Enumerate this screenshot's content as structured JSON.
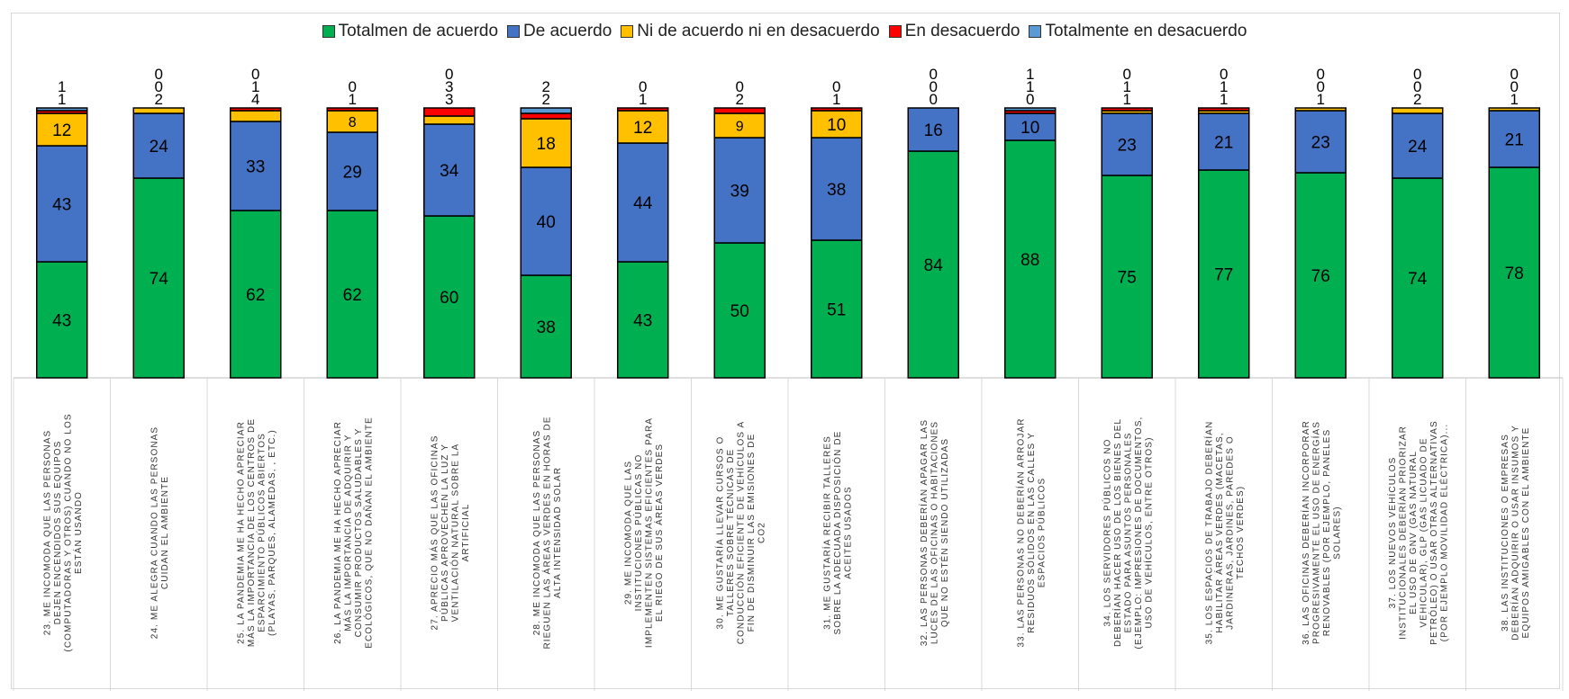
{
  "chart_data": {
    "type": "bar",
    "stacked": true,
    "legend_position": "top",
    "grid": false,
    "ylim": [
      0,
      100
    ],
    "series": [
      {
        "name": "Totalmen de acuerdo",
        "color": "#00b050",
        "values": [
          43,
          74,
          62,
          62,
          60,
          38,
          43,
          50,
          51,
          84,
          88,
          75,
          77,
          76,
          74,
          78
        ]
      },
      {
        "name": "De acuerdo",
        "color": "#4472c4",
        "values": [
          43,
          24,
          33,
          29,
          34,
          40,
          44,
          39,
          38,
          16,
          10,
          23,
          21,
          23,
          24,
          21
        ]
      },
      {
        "name": "Ni de acuerdo ni en desacuerdo",
        "color": "#ffc000",
        "values": [
          12,
          2,
          4,
          8,
          3,
          18,
          12,
          9,
          10,
          0,
          0,
          1,
          1,
          1,
          2,
          1
        ]
      },
      {
        "name": "En desacuerdo",
        "color": "#ff0000",
        "values": [
          1,
          0,
          1,
          1,
          3,
          2,
          1,
          2,
          1,
          0,
          1,
          1,
          1,
          0,
          0,
          0
        ]
      },
      {
        "name": "Totalmente en desacuerdo",
        "color": "#5b9bd5",
        "values": [
          1,
          0,
          0,
          0,
          0,
          2,
          0,
          0,
          0,
          0,
          1,
          0,
          0,
          0,
          0,
          0
        ]
      }
    ],
    "categories": [
      "23. ME INCOMODA QUE LAS PERSONAS DEJEN ENCENDIDOS SUS EQUIPOS (COMPUTADORAS Y OTROS) CUANDO NO LOS ESTÁN USANDO",
      "24. ME ALEGRA CUANDO LAS PERSONAS CUIDAN EL AMBIENTE",
      "25. LA PANDEMIA ME HA HECHO APRECIAR MÁS LA IMPORTANCIA DE LOS CENTROS DE ESPARCIMIENTO PÚBLICOS ABIERTOS (PLAYAS, PARQUES, ALAMEDAS, , ETC.)",
      "26. LA PANDEMIA ME HA HECHO APRECIAR MÁS LA IMPORTANCIA DE ADQUIRIR Y CONSUMIR PRODUCTOS SALUDABLES Y ECOLÓGICOS, QUE NO DAÑAN EL AMBIENTE",
      "27. APRECIO MÁS QUE LAS OFICINAS PÚBLICAS APROVECHEN LA LUZ Y VENTILACIÓN NATURAL SOBRE LA ARTIFICIAL",
      "28. ME INCOMODA QUE LAS PERSONAS RIEGUEN LAS ÁREAS VERDES EN HORAS DE ALTA INTENSIDAD SOLAR",
      "29. ME INCOMODA QUE LAS INSTITUCIONES PÚBLICAS NO IMPLEMENTEN SISTEMAS EFICIENTES PARA EL RIEGO DE SUS ÁREAS VERDES",
      "30. ME GUSTARÍA LLEVAR CURSOS O TALLERES SOBRE TÉCNICAS DE CONDUCCIÓN EFICIENTE DE VEHÍCULOS A FIN DE DISMINUIR LAS EMISIONES DE CO2",
      "31. ME GUSTARÍA RECIBIR TALLERES SOBRE LA ADECUADA DISPOSICIÓN DE ACEITES USADOS",
      "32. LAS PERSONAS DEBERÍAN APAGAR LAS LUCES DE LAS OFICINAS O HABITACIONES QUE NO ESTÉN SIENDO UTILIZADAS",
      "33. LAS PERSONAS NO DEBERÍAN ARROJAR RESIDUOS SÓLIDOS EN LAS CALLES Y ESPACIOS PÚBLICOS",
      "34. LOS SERVIDORES PÚBLICOS NO DEBERÍAN HACER USO DE LOS BIENES DEL ESTADO PARA ASUNTOS PERSONALES (EJEMPLO: IMPRESIONES DE DOCUMENTOS, USO DE VEHÍCULOS, ENTRE OTROS)",
      "35. LOS ESPACIOS DE TRABAJO DEBERÍAN HABILITAR ÁREAS VERDES (MACETAS, JARDINERAS, JARDINES, PAREDES O TECHOS VERDES)",
      "36. LAS OFICINAS DEBERÍAN INCORPORAR PROGRESIVAMENTE EL USO DE ENERGÍAS RENOVABLES (POR EJEMPLO, PANELES SOLARES)",
      "37. LOS NUEVOS VEHÍCULOS INSTITUCIONALES DEBERÍAN PRIORIZAR EL USO DE GNV (GAS NATURAL VEHICULAR), GLP (GAS LICUADO DE PETRÓLEO) O USAR OTRAS ALTERNATIVAS (POR EJEMPLO MOVILIDAD ELÉCTRICA)...",
      "38. LAS INSTITUCIONES O EMPRESAS DEBERÍAN ADQUIRIR O USAR INSUMOS Y EQUIPOS AMIGABLES CON EL AMBIENTE"
    ]
  }
}
